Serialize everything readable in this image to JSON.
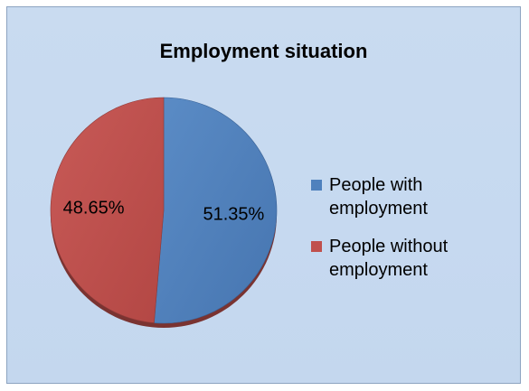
{
  "chart_data": {
    "type": "pie",
    "title": "Employment situation",
    "slices": [
      {
        "name": "People with employment",
        "value": 51.35,
        "label": "51.35%",
        "color": "#4f81bd"
      },
      {
        "name": "People without employment",
        "value": 48.65,
        "label": "48.65%",
        "color": "#c0504d"
      }
    ],
    "legend": {
      "placement": "right",
      "items": [
        {
          "line1": "People with",
          "line2": "employment",
          "color": "#4f81bd"
        },
        {
          "line1": "People without",
          "line2": "employment",
          "color": "#c0504d"
        }
      ]
    }
  }
}
